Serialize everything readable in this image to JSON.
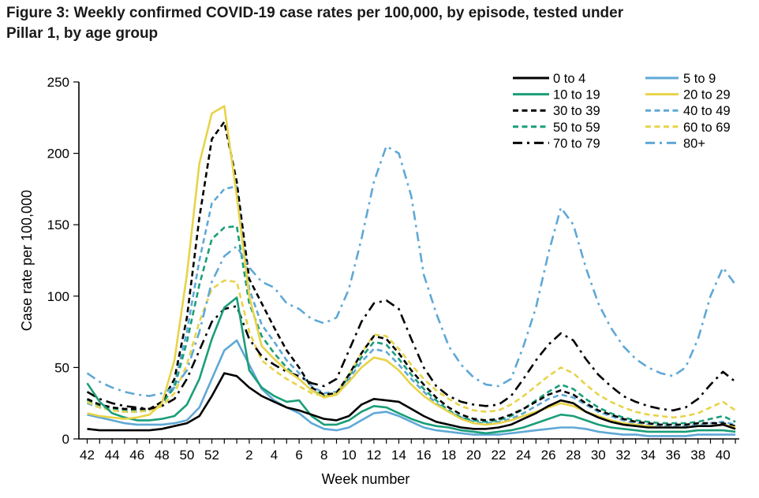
{
  "figure": {
    "title": "Figure 3: Weekly confirmed COVID-19 case rates per 100,000, by episode, tested under Pillar 1, by age group"
  },
  "chart_data": {
    "type": "line",
    "title": "Figure 3: Weekly confirmed COVID-19 case rates per 100,000, by episode, tested under Pillar 1, by age group",
    "xlabel": "Week number",
    "ylabel": "Case rate per 100,000",
    "ylim": [
      0,
      250
    ],
    "yticks": [
      0,
      50,
      100,
      150,
      200,
      250
    ],
    "grid": "off",
    "legend_position": "top-right inside plot, two columns",
    "weeks": [
      42,
      43,
      44,
      45,
      46,
      47,
      48,
      49,
      50,
      51,
      52,
      53,
      1,
      2,
      3,
      4,
      5,
      6,
      7,
      8,
      9,
      10,
      11,
      12,
      13,
      14,
      15,
      16,
      17,
      18,
      19,
      20,
      21,
      22,
      23,
      24,
      25,
      26,
      27,
      28,
      29,
      30,
      31,
      32,
      33,
      34,
      35,
      36,
      37,
      38,
      39,
      40,
      41
    ],
    "xtick_labels": [
      42,
      44,
      46,
      48,
      50,
      52,
      2,
      4,
      6,
      8,
      10,
      12,
      14,
      16,
      18,
      20,
      22,
      24,
      26,
      28,
      30,
      32,
      34,
      36,
      38,
      40
    ],
    "colors": {
      "black": "#000000",
      "blue": "#5FA8D6",
      "teal": "#1A9E78",
      "yellow": "#E8D34A"
    },
    "series": [
      {
        "name": "0 to 4",
        "color": "black",
        "style": "solid",
        "values": [
          7,
          6,
          6,
          6,
          6,
          6,
          7,
          9,
          11,
          16,
          30,
          46,
          44,
          36,
          30,
          26,
          22,
          20,
          17,
          14,
          13,
          16,
          24,
          28,
          27,
          26,
          21,
          16,
          12,
          10,
          8,
          7,
          7,
          8,
          10,
          14,
          18,
          23,
          27,
          25,
          19,
          15,
          12,
          10,
          9,
          8,
          8,
          8,
          8,
          9,
          9,
          10,
          7
        ]
      },
      {
        "name": "5 to 9",
        "color": "blue",
        "style": "solid",
        "values": [
          17,
          15,
          13,
          11,
          10,
          10,
          10,
          11,
          13,
          22,
          42,
          62,
          69,
          52,
          35,
          27,
          22,
          18,
          11,
          7,
          6,
          8,
          13,
          18,
          19,
          16,
          12,
          8,
          6,
          5,
          4,
          3,
          3,
          3,
          4,
          5,
          6,
          7,
          8,
          8,
          7,
          5,
          4,
          3,
          3,
          2,
          2,
          2,
          2,
          3,
          3,
          3,
          3
        ]
      },
      {
        "name": "10 to 19",
        "color": "teal",
        "style": "solid",
        "values": [
          39,
          26,
          18,
          15,
          13,
          13,
          14,
          16,
          24,
          42,
          70,
          92,
          99,
          48,
          36,
          30,
          26,
          27,
          16,
          10,
          10,
          13,
          19,
          23,
          22,
          18,
          14,
          11,
          9,
          8,
          6,
          5,
          4,
          5,
          6,
          8,
          11,
          14,
          17,
          16,
          13,
          10,
          8,
          7,
          6,
          5,
          5,
          5,
          5,
          6,
          6,
          6,
          5
        ]
      },
      {
        "name": "20 to 29",
        "color": "yellow",
        "style": "solid",
        "values": [
          18,
          16,
          15,
          14,
          15,
          17,
          25,
          55,
          115,
          193,
          228,
          233,
          170,
          100,
          65,
          56,
          48,
          42,
          34,
          29,
          31,
          40,
          50,
          57,
          55,
          48,
          38,
          30,
          24,
          19,
          14,
          11,
          10,
          11,
          13,
          16,
          19,
          22,
          25,
          23,
          19,
          16,
          13,
          11,
          10,
          9,
          8,
          8,
          8,
          9,
          9,
          10,
          8
        ]
      },
      {
        "name": "30 to 39",
        "color": "black",
        "style": "dashed",
        "values": [
          28,
          24,
          22,
          21,
          21,
          21,
          26,
          42,
          85,
          155,
          210,
          222,
          180,
          112,
          95,
          78,
          62,
          50,
          36,
          31,
          32,
          45,
          60,
          72,
          70,
          60,
          48,
          38,
          29,
          22,
          17,
          14,
          13,
          14,
          17,
          21,
          26,
          31,
          34,
          31,
          25,
          20,
          17,
          14,
          12,
          11,
          10,
          10,
          10,
          11,
          11,
          11,
          9
        ]
      },
      {
        "name": "40 to 49",
        "color": "blue",
        "style": "dashed",
        "values": [
          25,
          22,
          20,
          19,
          19,
          20,
          24,
          38,
          75,
          125,
          165,
          175,
          177,
          105,
          80,
          68,
          55,
          46,
          37,
          32,
          33,
          42,
          54,
          63,
          61,
          52,
          42,
          33,
          25,
          19,
          15,
          12,
          11,
          12,
          14,
          18,
          23,
          28,
          31,
          29,
          24,
          19,
          16,
          13,
          11,
          10,
          9,
          9,
          9,
          10,
          11,
          12,
          10
        ]
      },
      {
        "name": "50 to 59",
        "color": "teal",
        "style": "dashed",
        "values": [
          27,
          23,
          21,
          20,
          20,
          21,
          25,
          36,
          68,
          108,
          140,
          148,
          149,
          95,
          72,
          60,
          50,
          42,
          34,
          30,
          31,
          44,
          57,
          68,
          66,
          56,
          45,
          35,
          27,
          20,
          15,
          13,
          12,
          13,
          16,
          21,
          27,
          33,
          38,
          35,
          28,
          22,
          18,
          15,
          13,
          12,
          11,
          11,
          11,
          12,
          14,
          16,
          12
        ]
      },
      {
        "name": "60 to 69",
        "color": "yellow",
        "style": "dashed",
        "values": [
          26,
          22,
          20,
          19,
          19,
          20,
          23,
          32,
          52,
          82,
          105,
          111,
          110,
          75,
          55,
          48,
          42,
          37,
          32,
          30,
          32,
          45,
          60,
          73,
          72,
          63,
          52,
          42,
          34,
          28,
          23,
          20,
          19,
          20,
          24,
          30,
          37,
          44,
          50,
          46,
          38,
          31,
          26,
          22,
          19,
          17,
          16,
          15,
          16,
          18,
          22,
          26,
          20
        ]
      },
      {
        "name": "70 to 79",
        "color": "black",
        "style": "dashdot",
        "values": [
          33,
          28,
          25,
          23,
          22,
          21,
          23,
          28,
          42,
          62,
          82,
          91,
          93,
          70,
          58,
          52,
          47,
          44,
          39,
          37,
          42,
          62,
          82,
          95,
          97,
          91,
          70,
          50,
          37,
          30,
          26,
          24,
          23,
          24,
          30,
          42,
          55,
          66,
          74,
          69,
          56,
          45,
          37,
          30,
          26,
          23,
          21,
          20,
          22,
          28,
          38,
          47,
          40
        ]
      },
      {
        "name": "80+",
        "color": "blue",
        "style": "dashdot",
        "values": [
          46,
          40,
          36,
          33,
          31,
          30,
          32,
          36,
          48,
          75,
          110,
          128,
          135,
          120,
          110,
          106,
          95,
          91,
          84,
          81,
          85,
          105,
          140,
          180,
          205,
          200,
          170,
          115,
          88,
          65,
          52,
          43,
          38,
          37,
          42,
          65,
          92,
          130,
          162,
          150,
          120,
          95,
          78,
          65,
          56,
          50,
          46,
          44,
          50,
          70,
          100,
          120,
          108
        ]
      }
    ]
  }
}
